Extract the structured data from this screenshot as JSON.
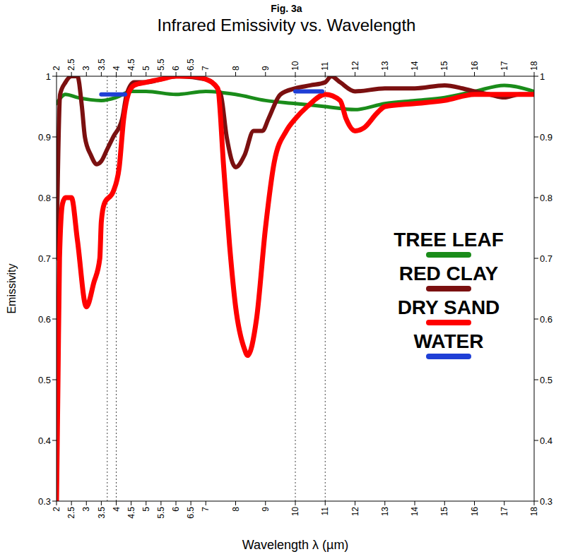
{
  "chart_data": {
    "type": "line",
    "subtitle": "Fig. 3a",
    "title": "Infrared Emissivity vs. Wavelength",
    "x_label": "Wavelength λ (µm)",
    "y_label": "Emissivity",
    "xlim": [
      2,
      18
    ],
    "xticks": [
      2,
      2.5,
      3,
      3.5,
      4,
      4.5,
      5,
      5.5,
      6,
      6.5,
      7,
      8,
      9,
      10,
      11,
      12,
      13,
      14,
      15,
      16,
      17,
      18
    ],
    "ylim": [
      0.3,
      1
    ],
    "yticks": [
      0.3,
      0.4,
      0.5,
      0.6,
      0.7,
      0.8,
      0.9,
      1
    ],
    "grid": false,
    "legend": "right",
    "vlines": [
      3.7,
      4,
      10,
      11
    ],
    "series": [
      {
        "name": "TREE LEAF",
        "color": "#1a8c1a",
        "x": [
          2,
          2.3,
          2.7,
          3.5,
          4,
          4.5,
          5,
          6,
          7,
          8,
          9,
          10,
          11,
          12,
          13,
          14,
          15,
          16,
          17,
          18
        ],
        "values": [
          0.955,
          0.97,
          0.965,
          0.96,
          0.965,
          0.975,
          0.975,
          0.97,
          0.975,
          0.97,
          0.96,
          0.955,
          0.95,
          0.945,
          0.955,
          0.96,
          0.965,
          0.975,
          0.985,
          0.975
        ]
      },
      {
        "name": "RED CLAY",
        "color": "#7b1010",
        "x": [
          2,
          2.12,
          2.3,
          2.5,
          2.7,
          2.85,
          2.95,
          3.15,
          3.35,
          3.5,
          3.7,
          3.9,
          4.2,
          4.35,
          4.6,
          5,
          5.5,
          6,
          7,
          7.5,
          7.7,
          8,
          8.3,
          8.6,
          8.9,
          9.1,
          9.5,
          10,
          10.5,
          11,
          11.2,
          11.5,
          12,
          13,
          14,
          15,
          15.6,
          16,
          16.5,
          17,
          17.5,
          18
        ],
        "values": [
          0.7,
          0.97,
          0.99,
          1,
          1,
          0.95,
          0.9,
          0.87,
          0.855,
          0.86,
          0.88,
          0.9,
          0.93,
          0.97,
          0.99,
          0.99,
          0.995,
          1,
          0.995,
          0.97,
          0.9,
          0.85,
          0.87,
          0.91,
          0.91,
          0.93,
          0.97,
          0.98,
          0.985,
          0.99,
          1,
          0.99,
          0.975,
          0.98,
          0.98,
          0.985,
          0.98,
          0.975,
          0.97,
          0.965,
          0.97,
          0.97
        ]
      },
      {
        "name": "DRY SAND",
        "color": "#ff0000",
        "x": [
          2,
          2.05,
          2.1,
          2.2,
          2.3,
          2.5,
          2.7,
          3,
          3.25,
          3.45,
          3.5,
          3.6,
          3.9,
          4.1,
          4.25,
          4.4,
          4.6,
          5,
          5.5,
          6,
          6.5,
          7,
          7.4,
          7.6,
          7.8,
          8,
          8.3,
          8.4,
          8.7,
          9,
          9.3,
          9.7,
          10,
          10.4,
          11,
          11.5,
          11.7,
          12,
          12.3,
          12.75,
          13,
          14,
          15,
          16,
          17,
          18
        ],
        "values": [
          0.3,
          0.5,
          0.7,
          0.79,
          0.8,
          0.8,
          0.73,
          0.62,
          0.66,
          0.7,
          0.76,
          0.79,
          0.81,
          0.85,
          0.93,
          0.97,
          0.985,
          0.99,
          0.995,
          1,
          1,
          0.995,
          0.98,
          0.85,
          0.72,
          0.62,
          0.55,
          0.54,
          0.6,
          0.75,
          0.86,
          0.91,
          0.93,
          0.95,
          0.97,
          0.96,
          0.93,
          0.91,
          0.915,
          0.94,
          0.95,
          0.955,
          0.96,
          0.97,
          0.97,
          0.97
        ]
      },
      {
        "name": "WATER",
        "color": "#1f3fd6",
        "x": [
          3.5,
          4.3,
          7,
          10,
          10.9
        ],
        "values": [
          0.97,
          0.97,
          null,
          0.975,
          0.975
        ]
      }
    ]
  }
}
